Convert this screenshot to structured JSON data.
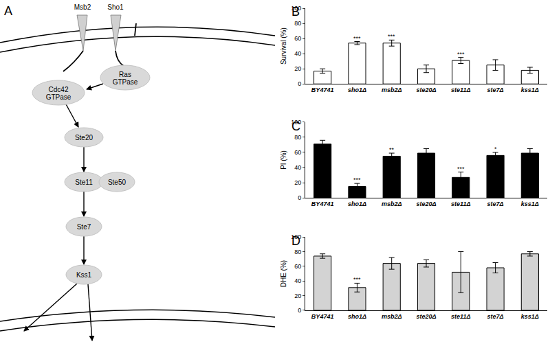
{
  "diagram": {
    "label": "A",
    "receptors": [
      "Msb2",
      "Sho1"
    ],
    "nodes": [
      {
        "lines": [
          "Cdc42",
          "GTPase"
        ]
      },
      {
        "lines": [
          "Ras",
          "GTPase"
        ]
      },
      {
        "lines": [
          "Ste20"
        ]
      },
      {
        "lines": [
          "Ste11"
        ]
      },
      {
        "lines": [
          "Ste50"
        ]
      },
      {
        "lines": [
          "Ste7"
        ]
      },
      {
        "lines": [
          "Kss1"
        ]
      }
    ]
  },
  "chart_data": [
    {
      "type": "bar",
      "panel": "B",
      "ylabel": "Survival (%)",
      "categories": [
        "BY4741",
        "sho1Δ",
        "msb2Δ",
        "ste20Δ",
        "ste11Δ",
        "ste7Δ",
        "kss1Δ"
      ],
      "values": [
        17,
        54,
        54,
        20,
        31,
        25,
        18
      ],
      "errors": [
        3,
        2,
        4,
        5,
        4,
        7,
        4
      ],
      "significance": [
        null,
        "***",
        "***",
        null,
        "***",
        null,
        null
      ],
      "color": "#ffffff",
      "ylim": [
        0,
        100
      ],
      "yticks": [
        0,
        20,
        40,
        60,
        80,
        100
      ],
      "grid": false
    },
    {
      "type": "bar",
      "panel": "C",
      "ylabel": "PI (%)",
      "categories": [
        "BY4741",
        "sho1Δ",
        "msb2Δ",
        "ste20Δ",
        "ste11Δ",
        "ste7Δ",
        "kss1Δ"
      ],
      "values": [
        71,
        15,
        55,
        59,
        27,
        56,
        59
      ],
      "errors": [
        5,
        4,
        4,
        6,
        7,
        4,
        6
      ],
      "significance": [
        null,
        "***",
        "**",
        null,
        "***",
        "*",
        null
      ],
      "color": "#000000",
      "ylim": [
        0,
        100
      ],
      "yticks": [
        0,
        20,
        40,
        60,
        80,
        100
      ],
      "grid": false
    },
    {
      "type": "bar",
      "panel": "D",
      "ylabel": "DHE (%)",
      "categories": [
        "BY4741",
        "sho1Δ",
        "msb2Δ",
        "ste20Δ",
        "ste11Δ",
        "ste7Δ",
        "kss1Δ"
      ],
      "values": [
        74,
        31,
        64,
        64,
        52,
        58,
        77
      ],
      "errors": [
        3,
        6,
        8,
        5,
        28,
        7,
        3
      ],
      "significance": [
        null,
        "***",
        null,
        null,
        null,
        null,
        null
      ],
      "color": "#d3d3d3",
      "ylim": [
        0,
        100
      ],
      "yticks": [
        0,
        20,
        40,
        60,
        80,
        100
      ],
      "grid": false
    }
  ]
}
